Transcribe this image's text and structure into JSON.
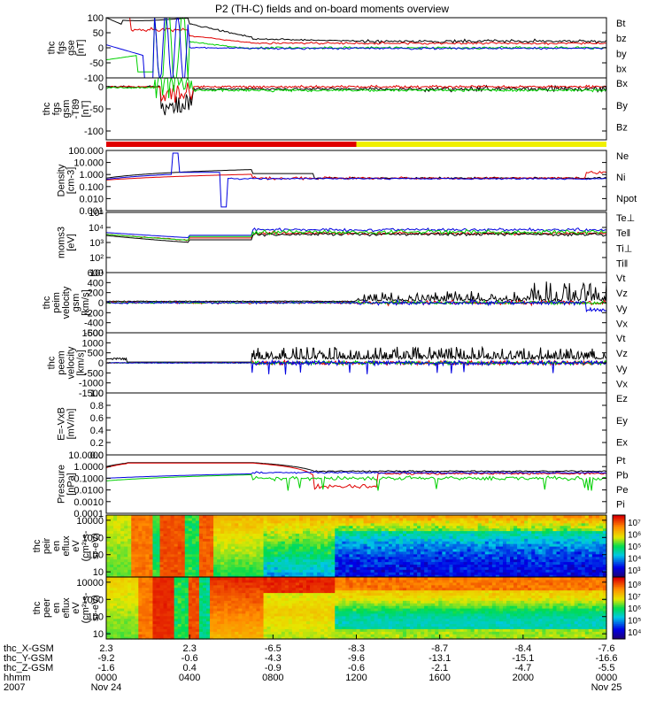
{
  "title": "P2 (TH-C) fields and on-board moments overview",
  "colors": {
    "black": "#000000",
    "red": "#e00000",
    "green": "#00d000",
    "blue": "#0000e0",
    "yellow": "#f0f000"
  },
  "chart_data": [
    {
      "type": "line",
      "name": "fgs_gse",
      "ylabel_lines": [
        "thc",
        "fgs",
        "gse",
        "[nT]"
      ],
      "ylim": [
        -100,
        100
      ],
      "log": false,
      "ticks": [
        "100",
        "50",
        "0",
        "-50",
        "-100"
      ],
      "series": [
        {
          "name": "Bt",
          "color": "black"
        },
        {
          "name": "bz",
          "color": "red"
        },
        {
          "name": "by",
          "color": "green"
        },
        {
          "name": "bx",
          "color": "blue"
        }
      ]
    },
    {
      "type": "line",
      "name": "fgs_gsm",
      "ylabel_lines": [
        "thc",
        "fgs",
        "gsm",
        "-T89",
        "[nT]"
      ],
      "ylim": [
        -120,
        20
      ],
      "log": false,
      "ticks": [
        "0",
        "-50",
        "-100"
      ],
      "series": [
        {
          "name": "Bx",
          "color": "black"
        },
        {
          "name": "By",
          "color": "green"
        },
        {
          "name": "Bz",
          "color": "red"
        }
      ]
    },
    {
      "type": "line",
      "name": "density",
      "ylabel_lines": [
        "Density",
        "[cm-3]"
      ],
      "ylim": [
        0.001,
        100
      ],
      "log": true,
      "ticks": [
        "100.000",
        "10.000",
        "1.000",
        "0.100",
        "0.010",
        "0.001"
      ],
      "series": [
        {
          "name": "Ne",
          "color": "red"
        },
        {
          "name": "Ni",
          "color": "black"
        },
        {
          "name": "Npot",
          "color": "blue"
        }
      ]
    },
    {
      "type": "line",
      "name": "temperature",
      "ylabel_lines": [
        "moms3",
        "[eV]"
      ],
      "ylim": [
        10,
        100000
      ],
      "log": true,
      "ticks": [
        "10⁵",
        "10⁴",
        "10³",
        "10²",
        "10¹"
      ],
      "series": [
        {
          "name": "Te⊥",
          "color": "red"
        },
        {
          "name": "Te‖",
          "color": "black"
        },
        {
          "name": "Ti⊥",
          "color": "blue"
        },
        {
          "name": "Ti‖",
          "color": "green"
        }
      ]
    },
    {
      "type": "line",
      "name": "peim_velocity",
      "ylabel_lines": [
        "thc",
        "peim",
        "velocity",
        "gsm",
        "[km/s]"
      ],
      "ylim": [
        -600,
        600
      ],
      "log": false,
      "ticks": [
        "600",
        "400",
        "200",
        "0",
        "-200",
        "-400",
        "-600"
      ],
      "series": [
        {
          "name": "Vt",
          "color": "black"
        },
        {
          "name": "Vz",
          "color": "red"
        },
        {
          "name": "Vy",
          "color": "green"
        },
        {
          "name": "Vx",
          "color": "blue"
        }
      ]
    },
    {
      "type": "line",
      "name": "peem_velocity",
      "ylabel_lines": [
        "thc",
        "peem",
        "velocity",
        "[km/s]"
      ],
      "ylim": [
        -1500,
        1500
      ],
      "log": false,
      "ticks": [
        "1500",
        "1000",
        "500",
        "0",
        "-500",
        "-1000",
        "-1500"
      ],
      "series": [
        {
          "name": "Vt",
          "color": "black"
        },
        {
          "name": "Vz",
          "color": "red"
        },
        {
          "name": "Vy",
          "color": "green"
        },
        {
          "name": "Vx",
          "color": "blue"
        }
      ]
    },
    {
      "type": "line",
      "name": "efield",
      "ylabel_lines": [
        "E=-VxB",
        "[mV/m]"
      ],
      "ylim": [
        0,
        1
      ],
      "log": false,
      "ticks": [
        "1.0",
        "0.8",
        "0.6",
        "0.4",
        "0.2",
        "0.0"
      ],
      "series": [
        {
          "name": "Ez",
          "color": "red"
        },
        {
          "name": "Ey",
          "color": "green"
        },
        {
          "name": "Ex",
          "color": "blue"
        }
      ]
    },
    {
      "type": "line",
      "name": "pressure",
      "ylabel_lines": [
        "Pressure",
        "[nPa]"
      ],
      "ylim": [
        0.0001,
        10
      ],
      "log": true,
      "ticks": [
        "10.0000",
        "1.0000",
        "0.1000",
        "0.0100",
        "0.0010",
        "0.0001"
      ],
      "series": [
        {
          "name": "Pt",
          "color": "black"
        },
        {
          "name": "Pb",
          "color": "red"
        },
        {
          "name": "Pe",
          "color": "green"
        },
        {
          "name": "Pi",
          "color": "blue"
        }
      ]
    },
    {
      "type": "heatmap",
      "name": "peir_en_eflux",
      "ylabel_lines": [
        "thc",
        "peir",
        "en",
        "eflux",
        "eV",
        "(cm²-s-",
        "sr-eV)"
      ],
      "ylim": [
        5,
        20000
      ],
      "log": true,
      "ticks": [
        "10000",
        "1000",
        "100",
        "10"
      ],
      "colorbar_ticks": [
        "10⁷",
        "10⁶",
        "10⁵",
        "10⁴",
        "10³"
      ]
    },
    {
      "type": "heatmap",
      "name": "peer_en_eflux",
      "ylabel_lines": [
        "thc",
        "peer",
        "en",
        "eflux",
        "eV",
        "(cm²-s-",
        "sr-eV)"
      ],
      "ylim": [
        5,
        20000
      ],
      "log": true,
      "ticks": [
        "10000",
        "1000",
        "100",
        "10"
      ],
      "colorbar_ticks": [
        "10⁸",
        "10⁷",
        "10⁶",
        "10⁵",
        "10⁴"
      ]
    }
  ],
  "xaxis": {
    "row_labels": [
      "thc_X-GSM",
      "thc_Y-GSM",
      "thc_Z-GSM",
      "hhmm",
      "2007"
    ],
    "columns": [
      {
        "x": "2.3",
        "y": "-9.2",
        "z": "-1.6",
        "hhmm": "0000",
        "date": "Nov 24"
      },
      {
        "x": "2.3",
        "y": "-0.6",
        "z": "0.4",
        "hhmm": "0400",
        "date": ""
      },
      {
        "x": "-6.5",
        "y": "-4.3",
        "z": "-0.9",
        "hhmm": "0800",
        "date": ""
      },
      {
        "x": "-8.3",
        "y": "-9.6",
        "z": "-0.6",
        "hhmm": "1200",
        "date": ""
      },
      {
        "x": "-8.7",
        "y": "-13.1",
        "z": "-2.1",
        "hhmm": "1600",
        "date": ""
      },
      {
        "x": "-8.4",
        "y": "-15.1",
        "z": "-4.7",
        "hhmm": "2000",
        "date": ""
      },
      {
        "x": "-7.6",
        "y": "-16.6",
        "z": "-5.5",
        "hhmm": "0000",
        "date": "Nov 25"
      }
    ]
  }
}
